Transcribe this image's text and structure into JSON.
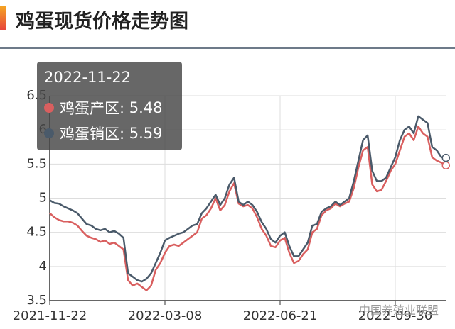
{
  "chart_data": {
    "type": "line",
    "title": "鸡蛋现货价格走势图",
    "categories": [
      "2021-11-22",
      null,
      null,
      null,
      null,
      null,
      null,
      null,
      null,
      null,
      null,
      null,
      null,
      null,
      null,
      null,
      null,
      null,
      null,
      null,
      null,
      null,
      null,
      null,
      null,
      "2022-03-08",
      null,
      null,
      null,
      null,
      null,
      null,
      null,
      null,
      null,
      null,
      null,
      null,
      null,
      null,
      null,
      null,
      null,
      null,
      null,
      null,
      null,
      null,
      null,
      null,
      "2022-06-21",
      null,
      null,
      null,
      null,
      null,
      null,
      null,
      null,
      null,
      null,
      null,
      null,
      null,
      null,
      null,
      null,
      null,
      null,
      null,
      null,
      null,
      null,
      null,
      null,
      "2022-09-30",
      null,
      null,
      null,
      null,
      null,
      null,
      null,
      null,
      null,
      null,
      null
    ],
    "series": [
      {
        "name": "鸡蛋产区",
        "color": "#d95f5f",
        "values": [
          4.78,
          4.72,
          4.68,
          4.66,
          4.66,
          4.64,
          4.6,
          4.52,
          4.45,
          4.42,
          4.4,
          4.36,
          4.38,
          4.33,
          4.35,
          4.3,
          4.25,
          3.8,
          3.72,
          3.75,
          3.7,
          3.65,
          3.72,
          3.95,
          4.05,
          4.2,
          4.3,
          4.32,
          4.3,
          4.35,
          4.4,
          4.45,
          4.5,
          4.7,
          4.75,
          4.85,
          5.0,
          4.82,
          4.9,
          5.1,
          5.22,
          4.92,
          4.88,
          4.9,
          4.85,
          4.72,
          4.55,
          4.45,
          4.3,
          4.28,
          4.38,
          4.42,
          4.2,
          4.05,
          4.08,
          4.18,
          4.25,
          4.5,
          4.55,
          4.75,
          4.82,
          4.85,
          4.92,
          4.88,
          4.92,
          4.95,
          5.15,
          5.45,
          5.7,
          5.75,
          5.2,
          5.1,
          5.12,
          5.25,
          5.4,
          5.5,
          5.7,
          5.9,
          5.95,
          5.85,
          6.05,
          5.95,
          5.9,
          5.6,
          5.55,
          5.52,
          5.48
        ]
      },
      {
        "name": "鸡蛋销区",
        "color": "#4a5a6a",
        "values": [
          4.97,
          4.93,
          4.92,
          4.88,
          4.85,
          4.82,
          4.78,
          4.7,
          4.62,
          4.6,
          4.55,
          4.53,
          4.55,
          4.5,
          4.52,
          4.48,
          4.42,
          3.9,
          3.85,
          3.8,
          3.78,
          3.82,
          3.9,
          4.05,
          4.2,
          4.38,
          4.42,
          4.45,
          4.48,
          4.5,
          4.55,
          4.6,
          4.62,
          4.78,
          4.85,
          4.95,
          5.05,
          4.9,
          5.0,
          5.2,
          5.3,
          4.95,
          4.9,
          4.95,
          4.9,
          4.8,
          4.65,
          4.55,
          4.4,
          4.35,
          4.45,
          4.5,
          4.3,
          4.15,
          4.15,
          4.25,
          4.35,
          4.6,
          4.62,
          4.8,
          4.85,
          4.88,
          4.95,
          4.9,
          4.95,
          5.0,
          5.25,
          5.55,
          5.85,
          5.92,
          5.4,
          5.25,
          5.25,
          5.3,
          5.45,
          5.6,
          5.85,
          6.0,
          6.05,
          5.95,
          6.2,
          6.15,
          6.1,
          5.75,
          5.7,
          5.6,
          5.59
        ]
      }
    ],
    "ylim": [
      3.5,
      6.5
    ],
    "yticks": [
      3.5,
      4,
      4.5,
      5,
      5.5,
      6,
      6.5
    ],
    "grid": true,
    "tooltip": {
      "title": "2022-11-22"
    },
    "watermark": "中国养殖业联盟"
  }
}
